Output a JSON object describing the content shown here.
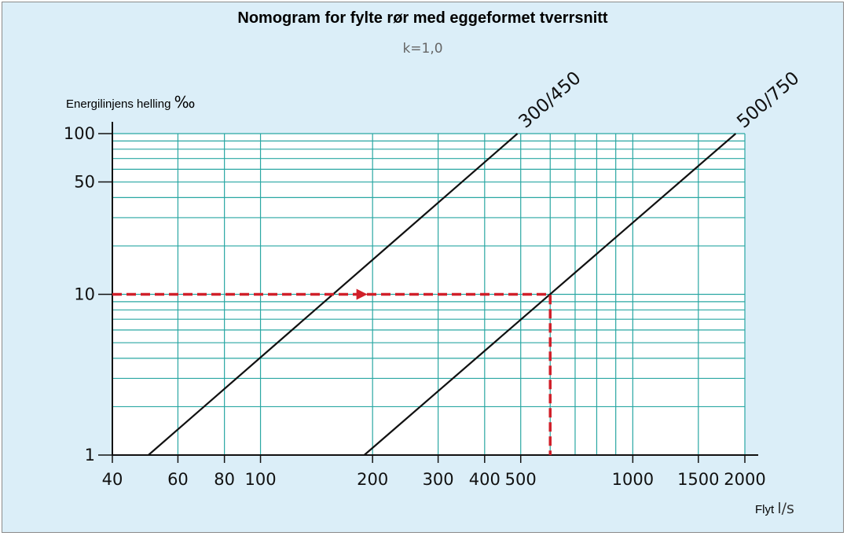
{
  "chart_data": {
    "type": "line",
    "title": "Nomogram for fylte rør med eggeformet tverrsnitt",
    "subtitle": "k=1,0",
    "ylabel": "Energilinjens helling",
    "ylabel_unit": "‰",
    "xlabel": "Flyt",
    "xlabel_unit": "l/s",
    "x_scale": "log",
    "y_scale": "log",
    "xlim": [
      40,
      2000
    ],
    "ylim": [
      1,
      100
    ],
    "x_ticks": [
      40,
      60,
      80,
      100,
      200,
      300,
      400,
      500,
      1000,
      1500,
      2000
    ],
    "x_tick_labels": [
      "40",
      "60",
      "80",
      "100",
      "200",
      "300",
      "400",
      "500",
      "1000",
      "1500",
      "2000"
    ],
    "y_ticks": [
      1,
      10,
      50,
      100
    ],
    "y_tick_labels": [
      "1",
      "10",
      "50",
      "100"
    ],
    "x_grid": [
      60,
      80,
      100,
      200,
      300,
      400,
      500,
      600,
      700,
      800,
      900,
      1000,
      1500,
      2000
    ],
    "y_grid": [
      2,
      3,
      4,
      5,
      6,
      7,
      8,
      9,
      10,
      20,
      30,
      40,
      50,
      60,
      70,
      80,
      90,
      100
    ],
    "grid": true,
    "series": [
      {
        "name": "300/450",
        "x": [
          50,
          490
        ],
        "y": [
          1,
          100
        ]
      },
      {
        "name": "500/750",
        "x": [
          190,
          1890
        ],
        "y": [
          1,
          100
        ]
      }
    ],
    "annotation": {
      "style": "dashed-arrow",
      "color": "#d0202a",
      "path_x": [
        40,
        600,
        600
      ],
      "path_y": [
        10,
        10,
        1
      ]
    },
    "colors": {
      "background": "#dbeef8",
      "plot": "#ffffff",
      "grid": "#2aa7a3",
      "axis": "#111111",
      "series": "#111111"
    }
  }
}
